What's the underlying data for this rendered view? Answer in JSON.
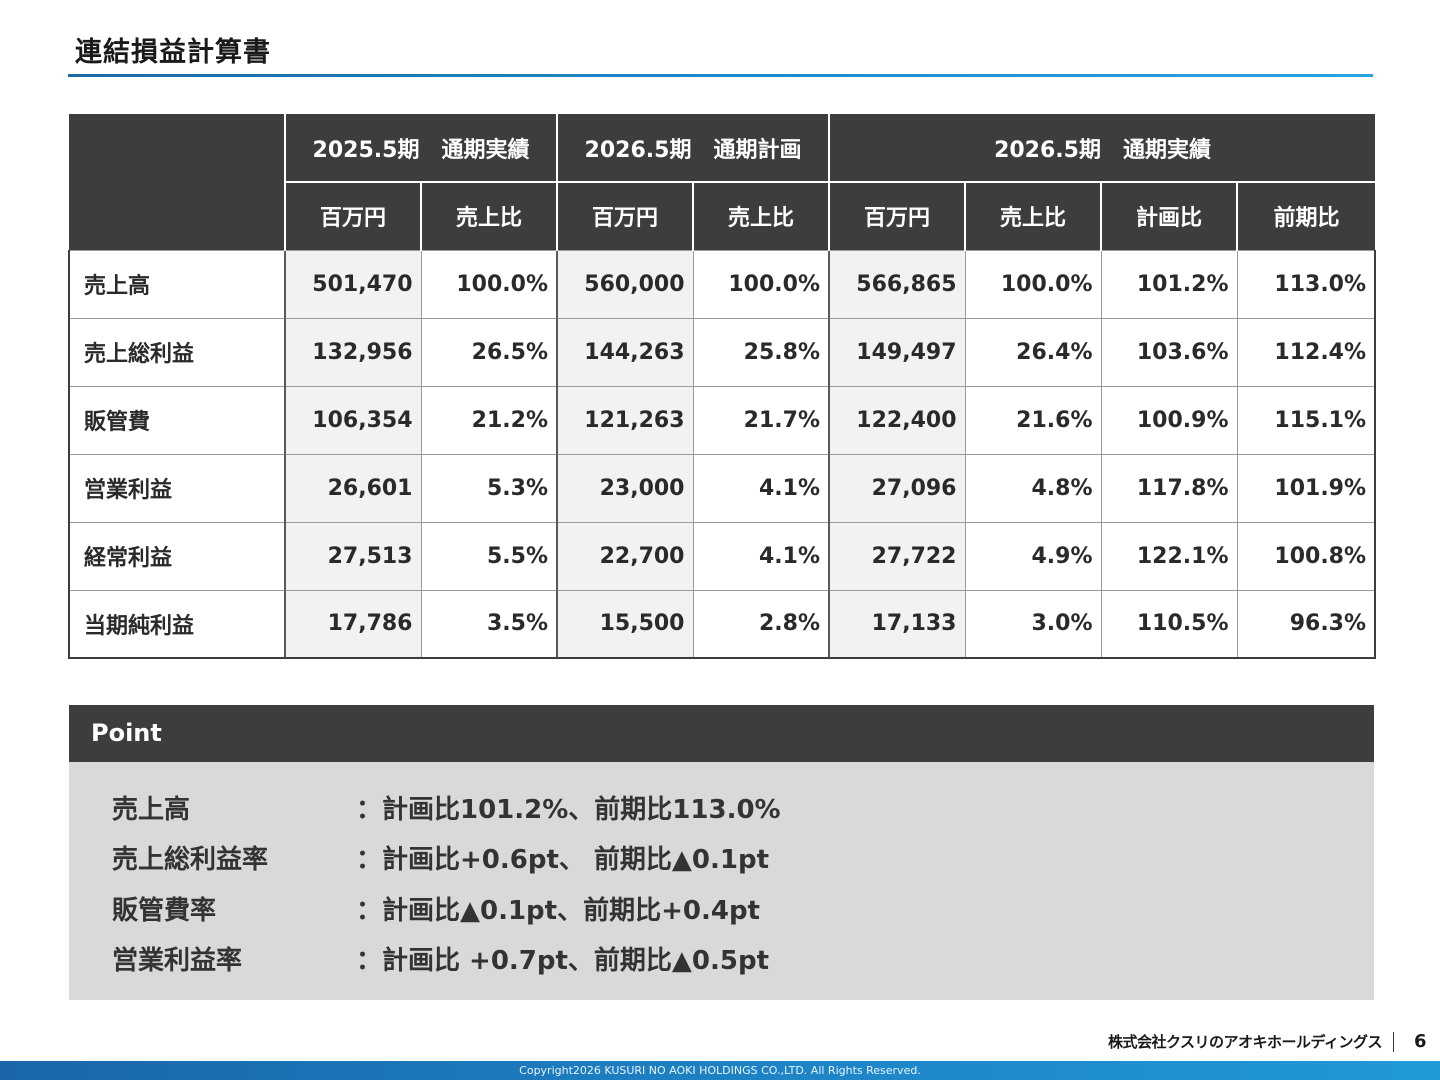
{
  "title": "連結損益計算書",
  "table": {
    "groups": [
      {
        "label": "2025.5期　通期実績"
      },
      {
        "label": "2026.5期　通期計画"
      },
      {
        "label": "2026.5期　通期実績"
      }
    ],
    "subheaders": [
      "百万円",
      "売上比",
      "百万円",
      "売上比",
      "百万円",
      "売上比",
      "計画比",
      "前期比"
    ],
    "rows": [
      {
        "label": "売上高",
        "values": [
          "501,470",
          "100.0%",
          "560,000",
          "100.0%",
          "566,865",
          "100.0%",
          "101.2%",
          "113.0%"
        ]
      },
      {
        "label": "売上総利益",
        "values": [
          "132,956",
          "26.5%",
          "144,263",
          "25.8%",
          "149,497",
          "26.4%",
          "103.6%",
          "112.4%"
        ]
      },
      {
        "label": "販管費",
        "values": [
          "106,354",
          "21.2%",
          "121,263",
          "21.7%",
          "122,400",
          "21.6%",
          "100.9%",
          "115.1%"
        ]
      },
      {
        "label": "営業利益",
        "values": [
          "26,601",
          "5.3%",
          "23,000",
          "4.1%",
          "27,096",
          "4.8%",
          "117.8%",
          "101.9%"
        ]
      },
      {
        "label": "経常利益",
        "values": [
          "27,513",
          "5.5%",
          "22,700",
          "4.1%",
          "27,722",
          "4.9%",
          "122.1%",
          "100.8%"
        ]
      },
      {
        "label": "当期純利益",
        "values": [
          "17,786",
          "3.5%",
          "15,500",
          "2.8%",
          "17,133",
          "3.0%",
          "110.5%",
          "96.3%"
        ]
      }
    ]
  },
  "point": {
    "header": "Point",
    "items": [
      {
        "label": "売上高",
        "value": "：計画比101.2%、前期比113.0%"
      },
      {
        "label": "売上総利益率",
        "value": "：計画比+0.6pt、 前期比▲0.1pt"
      },
      {
        "label": "販管費率",
        "value": "：計画比▲0.1pt、前期比+0.4pt"
      },
      {
        "label": "営業利益率",
        "value": "：計画比 +0.7pt、前期比▲0.5pt"
      }
    ]
  },
  "footer": {
    "brand": "株式会社クスリのアオキホールディングス",
    "page_number": "6",
    "copyright": "Copyright2026 KUSURI NO AOKI HOLDINGS CO.,LTD. All Rights Reserved."
  }
}
